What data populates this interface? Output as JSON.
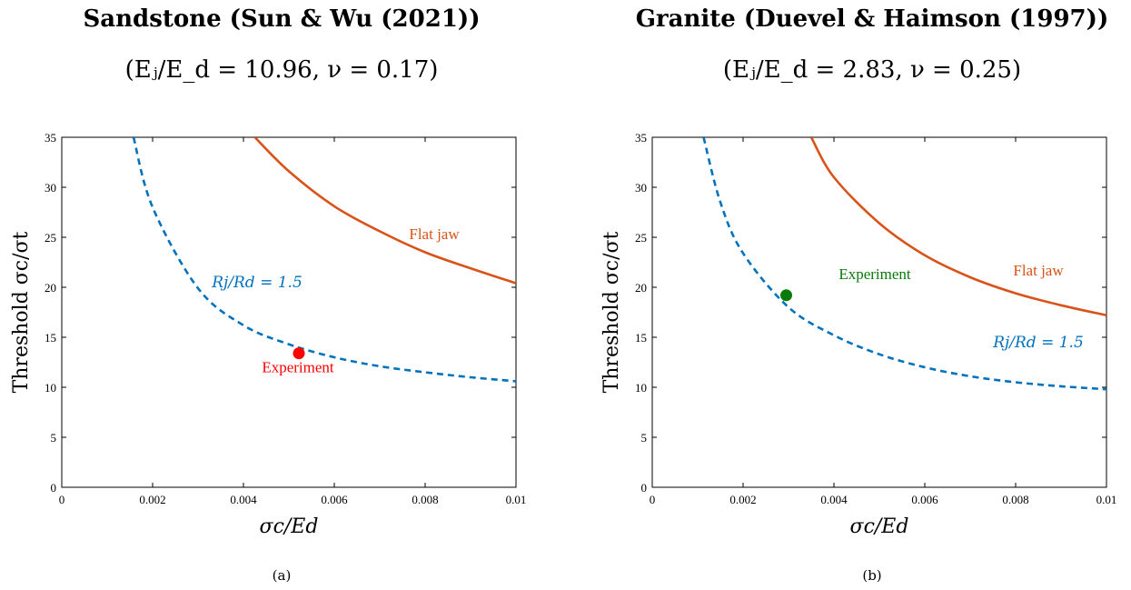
{
  "colors": {
    "model": "#0072bd",
    "flat_jaw": "#d95319",
    "exp_a": "#ff0000",
    "exp_b": "#0a7a0a"
  },
  "panels": [
    {
      "title": "Sandstone (Sun & Wu (2021))",
      "subtitle": "(Eⱼ/E_d = 10.96, ν = 0.17)",
      "caption": "(a)"
    },
    {
      "title": "Granite (Duevel & Haimson (1997))",
      "subtitle": "(Eⱼ/E_d = 2.83, ν = 0.25)",
      "caption": "(b)"
    }
  ],
  "chart_data": [
    {
      "type": "line",
      "xlabel": "σc/Ed",
      "ylabel": "Threshold σc/σt",
      "xlim": [
        0,
        0.01
      ],
      "ylim": [
        0,
        35
      ],
      "xticks": [
        "0",
        "0.002",
        "0.004",
        "0.006",
        "0.008",
        "0.01"
      ],
      "yticks": [
        "0",
        "5",
        "10",
        "15",
        "20",
        "25",
        "30",
        "35"
      ],
      "grid": false,
      "series": [
        {
          "name": "Rj/Rd = 1.5",
          "style": "dashed",
          "x": [
            0.00158,
            0.002,
            0.003,
            0.004,
            0.005,
            0.006,
            0.007,
            0.008,
            0.009,
            0.01
          ],
          "y": [
            35,
            28.0,
            19.9,
            16.2,
            14.3,
            13.0,
            12.1,
            11.5,
            11.0,
            10.6
          ]
        },
        {
          "name": "Flat jaw",
          "style": "solid",
          "x": [
            0.00425,
            0.005,
            0.006,
            0.007,
            0.008,
            0.009,
            0.01
          ],
          "y": [
            35,
            31.6,
            28.1,
            25.6,
            23.5,
            21.9,
            20.4
          ]
        },
        {
          "name": "Experiment",
          "style": "marker",
          "x": [
            0.00522
          ],
          "y": [
            13.4
          ]
        }
      ],
      "annotations": [
        {
          "text": "Rj/Rd = 1.5",
          "x": 0.0043,
          "y": 20
        },
        {
          "text": "Flat jaw",
          "x": 0.0082,
          "y": 24.8
        },
        {
          "text": "Experiment",
          "x": 0.0052,
          "y": 11.5
        }
      ]
    },
    {
      "type": "line",
      "xlabel": "σc/Ed",
      "ylabel": "Threshold σc/σt",
      "xlim": [
        0,
        0.01
      ],
      "ylim": [
        0,
        35
      ],
      "xticks": [
        "0",
        "0.002",
        "0.004",
        "0.006",
        "0.008",
        "0.01"
      ],
      "yticks": [
        "0",
        "5",
        "10",
        "15",
        "20",
        "25",
        "30",
        "35"
      ],
      "grid": false,
      "series": [
        {
          "name": "Rj/Rd = 1.5",
          "style": "dashed",
          "x": [
            0.00113,
            0.0015,
            0.002,
            0.003,
            0.004,
            0.005,
            0.006,
            0.007,
            0.008,
            0.009,
            0.01
          ],
          "y": [
            35,
            28.5,
            23.4,
            18.0,
            15.2,
            13.3,
            12.0,
            11.1,
            10.5,
            10.1,
            9.8
          ]
        },
        {
          "name": "Flat jaw",
          "style": "solid",
          "x": [
            0.0035,
            0.004,
            0.005,
            0.006,
            0.007,
            0.008,
            0.009,
            0.01
          ],
          "y": [
            35,
            31.0,
            26.4,
            23.2,
            21.0,
            19.4,
            18.2,
            17.2
          ]
        },
        {
          "name": "Experiment",
          "style": "marker",
          "x": [
            0.00295
          ],
          "y": [
            19.2
          ]
        }
      ],
      "annotations": [
        {
          "text": "Experiment",
          "x": 0.0049,
          "y": 20.8
        },
        {
          "text": "Flat jaw",
          "x": 0.0085,
          "y": 21.2
        },
        {
          "text": "Rj/Rd = 1.5",
          "x": 0.0085,
          "y": 14.0
        }
      ]
    }
  ]
}
